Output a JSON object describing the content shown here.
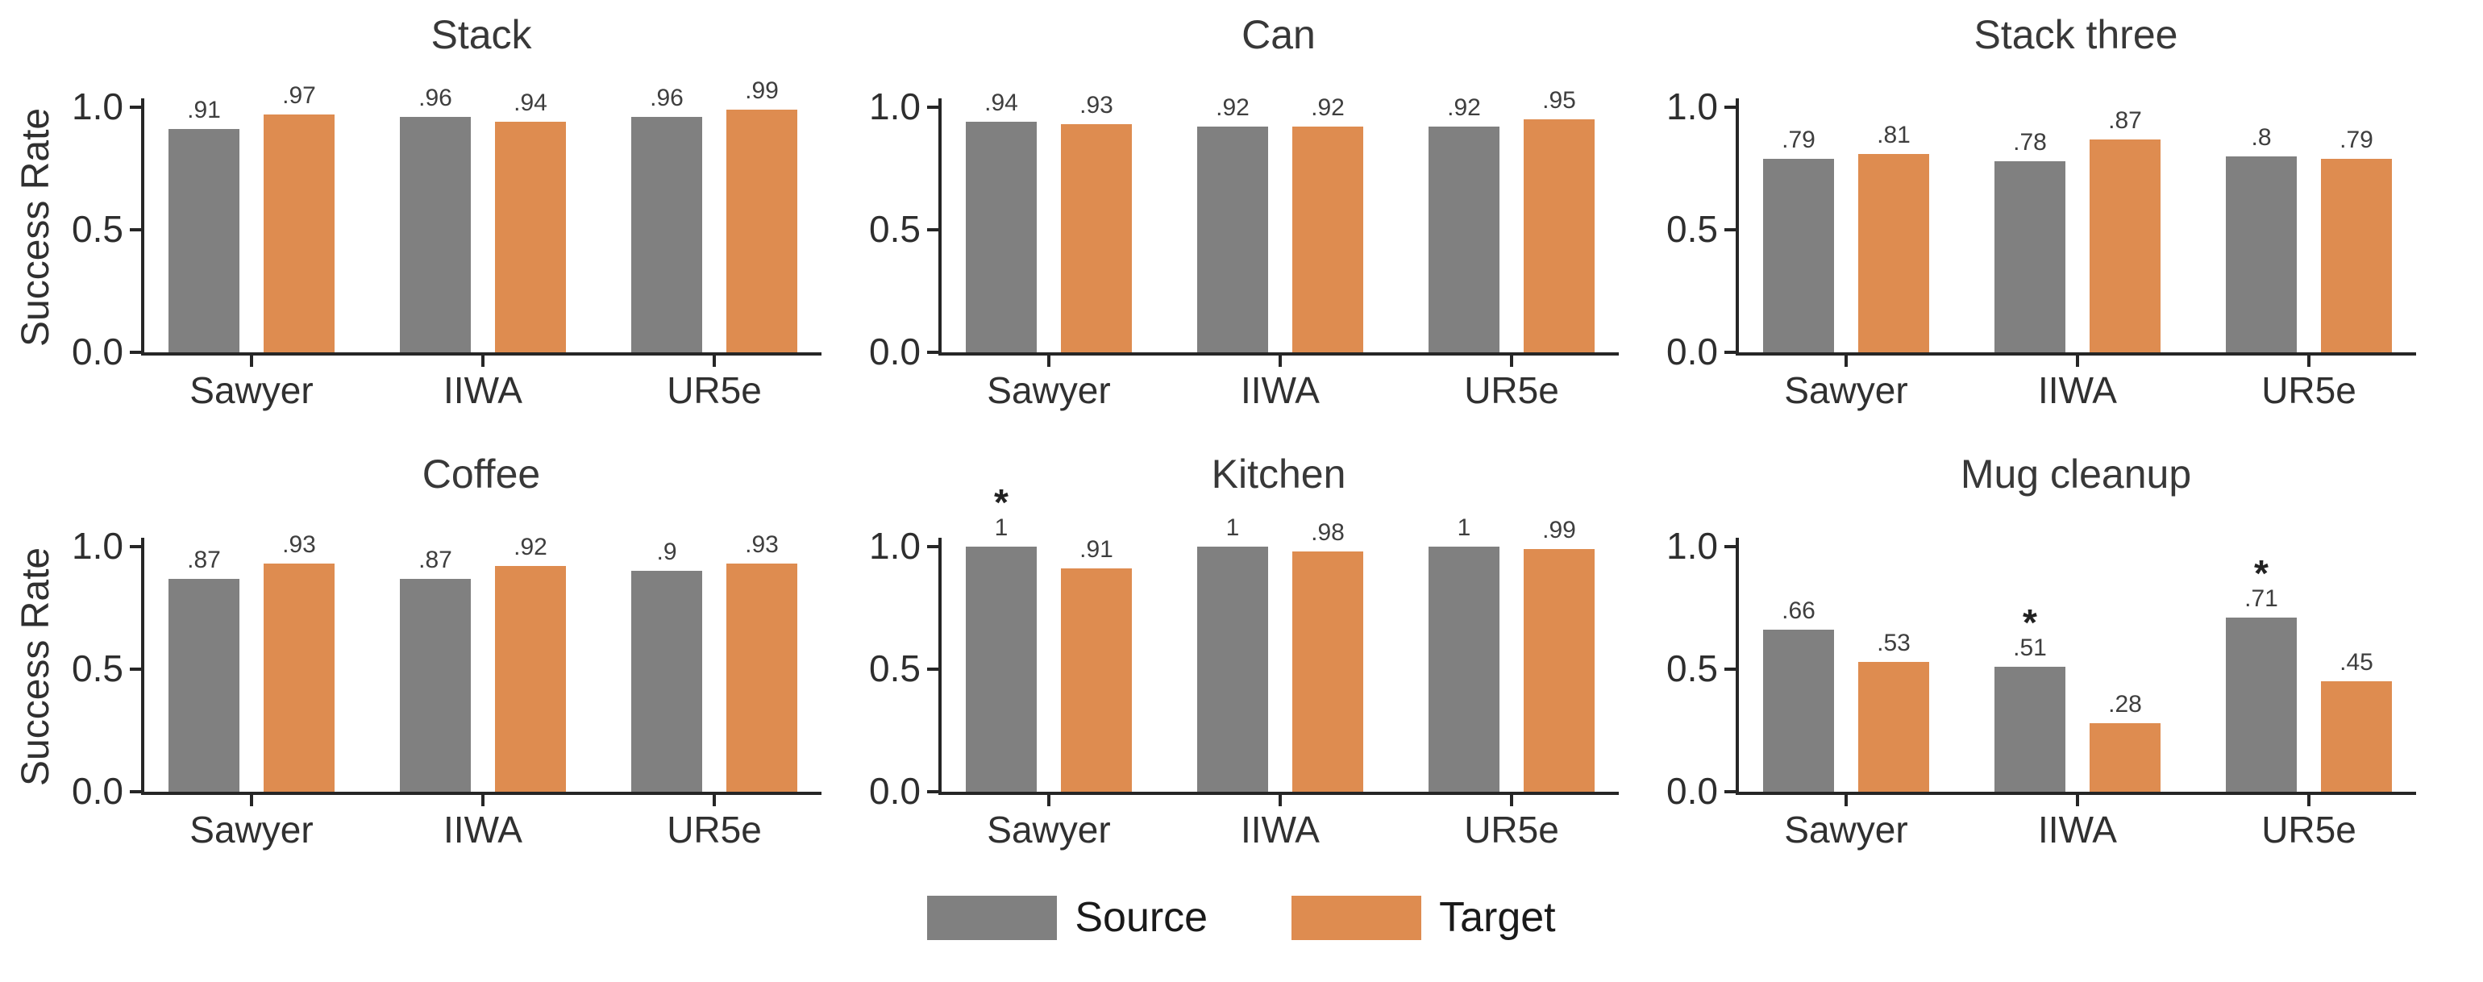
{
  "figure": {
    "ylabel": "Success Rate",
    "yticks": [
      "1.0",
      "0.5",
      "0.0"
    ],
    "legend": {
      "source_label": "Source",
      "target_label": "Target"
    },
    "colors": {
      "source_bar": "#808080",
      "target_bar": "#DE8C50",
      "axis": "#262626",
      "text": "#303030",
      "value_label": "#3e3e3e",
      "background": "#ffffff"
    },
    "significance_marker": "*"
  },
  "chart_data": [
    {
      "type": "bar",
      "title": "Stack",
      "categories": [
        "Sawyer",
        "IIWA",
        "UR5e"
      ],
      "series": [
        {
          "name": "Source",
          "color": "#808080",
          "values": [
            0.91,
            0.96,
            0.96
          ],
          "value_labels": [
            ".91",
            ".96",
            ".96"
          ],
          "significance_stars": [
            false,
            false,
            false
          ]
        },
        {
          "name": "Target",
          "color": "#DE8C50",
          "values": [
            0.97,
            0.94,
            0.99
          ],
          "value_labels": [
            ".97",
            ".94",
            ".99"
          ],
          "significance_stars": [
            false,
            false,
            false
          ]
        }
      ],
      "ylabel": "Success Rate",
      "ylim": [
        0,
        1.0
      ],
      "yticks": [
        "1.0",
        "0.5",
        "0.0"
      ],
      "grid": false,
      "legend_position": "figure-bottom-center"
    },
    {
      "type": "bar",
      "title": "Can",
      "categories": [
        "Sawyer",
        "IIWA",
        "UR5e"
      ],
      "series": [
        {
          "name": "Source",
          "color": "#808080",
          "values": [
            0.94,
            0.92,
            0.92
          ],
          "value_labels": [
            ".94",
            ".92",
            ".92"
          ],
          "significance_stars": [
            false,
            false,
            false
          ]
        },
        {
          "name": "Target",
          "color": "#DE8C50",
          "values": [
            0.93,
            0.92,
            0.95
          ],
          "value_labels": [
            ".93",
            ".92",
            ".95"
          ],
          "significance_stars": [
            false,
            false,
            false
          ]
        }
      ],
      "ylabel": "",
      "ylim": [
        0,
        1.0
      ],
      "yticks": [
        "1.0",
        "0.5",
        "0.0"
      ],
      "grid": false,
      "legend_position": "figure-bottom-center"
    },
    {
      "type": "bar",
      "title": "Stack three",
      "categories": [
        "Sawyer",
        "IIWA",
        "UR5e"
      ],
      "series": [
        {
          "name": "Source",
          "color": "#808080",
          "values": [
            0.79,
            0.78,
            0.8
          ],
          "value_labels": [
            ".79",
            ".78",
            ".8"
          ],
          "significance_stars": [
            false,
            false,
            false
          ]
        },
        {
          "name": "Target",
          "color": "#DE8C50",
          "values": [
            0.81,
            0.87,
            0.79
          ],
          "value_labels": [
            ".81",
            ".87",
            ".79"
          ],
          "significance_stars": [
            false,
            false,
            false
          ]
        }
      ],
      "ylabel": "",
      "ylim": [
        0,
        1.0
      ],
      "yticks": [
        "1.0",
        "0.5",
        "0.0"
      ],
      "grid": false,
      "legend_position": "figure-bottom-center"
    },
    {
      "type": "bar",
      "title": "Coffee",
      "categories": [
        "Sawyer",
        "IIWA",
        "UR5e"
      ],
      "series": [
        {
          "name": "Source",
          "color": "#808080",
          "values": [
            0.87,
            0.87,
            0.9
          ],
          "value_labels": [
            ".87",
            ".87",
            ".9"
          ],
          "significance_stars": [
            false,
            false,
            false
          ]
        },
        {
          "name": "Target",
          "color": "#DE8C50",
          "values": [
            0.93,
            0.92,
            0.93
          ],
          "value_labels": [
            ".93",
            ".92",
            ".93"
          ],
          "significance_stars": [
            false,
            false,
            false
          ]
        }
      ],
      "ylabel": "Success Rate",
      "ylim": [
        0,
        1.0
      ],
      "yticks": [
        "1.0",
        "0.5",
        "0.0"
      ],
      "grid": false,
      "legend_position": "figure-bottom-center"
    },
    {
      "type": "bar",
      "title": "Kitchen",
      "categories": [
        "Sawyer",
        "IIWA",
        "UR5e"
      ],
      "series": [
        {
          "name": "Source",
          "color": "#808080",
          "values": [
            1.0,
            1.0,
            1.0
          ],
          "value_labels": [
            "1",
            "1",
            "1"
          ],
          "significance_stars": [
            true,
            false,
            false
          ]
        },
        {
          "name": "Target",
          "color": "#DE8C50",
          "values": [
            0.91,
            0.98,
            0.99
          ],
          "value_labels": [
            ".91",
            ".98",
            ".99"
          ],
          "significance_stars": [
            false,
            false,
            false
          ]
        }
      ],
      "ylabel": "",
      "ylim": [
        0,
        1.0
      ],
      "yticks": [
        "1.0",
        "0.5",
        "0.0"
      ],
      "grid": false,
      "legend_position": "figure-bottom-center"
    },
    {
      "type": "bar",
      "title": "Mug cleanup",
      "categories": [
        "Sawyer",
        "IIWA",
        "UR5e"
      ],
      "series": [
        {
          "name": "Source",
          "color": "#808080",
          "values": [
            0.66,
            0.51,
            0.71
          ],
          "value_labels": [
            ".66",
            ".51",
            ".71"
          ],
          "significance_stars": [
            false,
            true,
            true
          ]
        },
        {
          "name": "Target",
          "color": "#DE8C50",
          "values": [
            0.53,
            0.28,
            0.45
          ],
          "value_labels": [
            ".53",
            ".28",
            ".45"
          ],
          "significance_stars": [
            false,
            false,
            false
          ]
        }
      ],
      "ylabel": "",
      "ylim": [
        0,
        1.0
      ],
      "yticks": [
        "1.0",
        "0.5",
        "0.0"
      ],
      "grid": false,
      "legend_position": "figure-bottom-center"
    }
  ]
}
